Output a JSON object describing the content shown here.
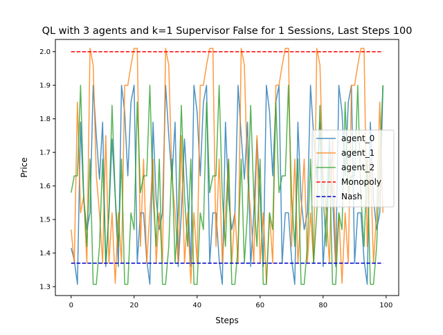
{
  "chart_data": {
    "type": "line",
    "title": "QL with 3 agents and k=1 Supervisor False for 1 Sessions, Last Steps 100",
    "xlabel": "Steps",
    "ylabel": "Price",
    "xlim": [
      -5,
      104
    ],
    "ylim": [
      1.2735,
      2.0365
    ],
    "xticks": [
      0,
      20,
      40,
      60,
      80,
      100
    ],
    "xtick_labels": [
      "0",
      "20",
      "40",
      "60",
      "80",
      "100"
    ],
    "yticks": [
      1.3,
      1.4,
      1.5,
      1.6,
      1.7,
      1.8,
      1.9,
      2.0
    ],
    "ytick_labels": [
      "1.3",
      "1.4",
      "1.5",
      "1.6",
      "1.7",
      "1.8",
      "1.9",
      "2.0"
    ],
    "grid": false,
    "legend_position": "center-right",
    "series": [
      {
        "name": "agent_0",
        "color": "#1f77b4",
        "style": "solid",
        "values": [
          1.415,
          1.38,
          1.307,
          1.79,
          1.56,
          1.47,
          1.52,
          1.9,
          1.75,
          1.62,
          1.79,
          1.36,
          1.52,
          1.74,
          1.57,
          1.36,
          1.9,
          1.82,
          1.63,
          1.85,
          1.9,
          1.37,
          1.52,
          1.52,
          1.38,
          1.307,
          1.79,
          1.56,
          1.47,
          1.52,
          1.9,
          1.75,
          1.62,
          1.79,
          1.36,
          1.52,
          1.74,
          1.57,
          1.36,
          1.9,
          1.82,
          1.63,
          1.85,
          1.9,
          1.37,
          1.52,
          1.52,
          1.38,
          1.307,
          1.79,
          1.56,
          1.47,
          1.52,
          1.9,
          1.75,
          1.62,
          1.79,
          1.36,
          1.52,
          1.74,
          1.57,
          1.36,
          1.9,
          1.82,
          1.63,
          1.85,
          1.9,
          1.37,
          1.52,
          1.52,
          1.38,
          1.307,
          1.79,
          1.56,
          1.47,
          1.52,
          1.9,
          1.75,
          1.62,
          1.79,
          1.36,
          1.52,
          1.74,
          1.57,
          1.36,
          1.9,
          1.82,
          1.63,
          1.85,
          1.9,
          1.37,
          1.52,
          1.52,
          1.38,
          1.307,
          1.79,
          1.56,
          1.47,
          1.52,
          1.9
        ]
      },
      {
        "name": "agent_1",
        "color": "#ff7f0e",
        "style": "solid",
        "values": [
          1.47,
          1.37,
          1.85,
          1.52,
          1.57,
          1.37,
          2.01,
          1.96,
          1.63,
          1.52,
          1.37,
          1.75,
          1.37,
          1.52,
          1.31,
          1.52,
          1.37,
          1.9,
          1.9,
          1.96,
          2.01,
          2.01,
          1.42,
          1.68,
          1.37,
          1.52,
          1.68,
          1.37,
          1.52,
          1.37,
          2.01,
          1.96,
          1.63,
          1.52,
          1.37,
          1.75,
          1.37,
          1.52,
          1.31,
          1.52,
          1.37,
          1.9,
          1.9,
          1.96,
          2.01,
          2.01,
          1.42,
          1.68,
          1.37,
          1.52,
          1.68,
          1.37,
          1.52,
          1.37,
          2.01,
          1.96,
          1.63,
          1.52,
          1.37,
          1.75,
          1.37,
          1.52,
          1.31,
          1.52,
          1.37,
          1.9,
          1.9,
          1.96,
          2.01,
          2.01,
          1.42,
          1.68,
          1.37,
          1.52,
          1.68,
          1.37,
          1.52,
          1.37,
          2.01,
          1.96,
          1.63,
          1.52,
          1.37,
          1.75,
          1.37,
          1.52,
          1.31,
          1.52,
          1.37,
          1.9,
          1.9,
          1.96,
          2.01,
          2.01,
          1.42,
          1.68,
          1.37,
          1.52,
          1.85,
          1.52
        ]
      },
      {
        "name": "agent_2",
        "color": "#2ca02c",
        "style": "solid",
        "values": [
          1.58,
          1.63,
          1.63,
          1.9,
          1.57,
          1.42,
          1.68,
          1.307,
          1.307,
          1.42,
          1.68,
          1.37,
          1.52,
          1.84,
          1.57,
          1.42,
          1.68,
          1.307,
          1.307,
          1.52,
          1.47,
          1.85,
          1.58,
          1.63,
          1.63,
          1.9,
          1.57,
          1.42,
          1.68,
          1.307,
          1.307,
          1.42,
          1.68,
          1.37,
          1.52,
          1.84,
          1.57,
          1.42,
          1.68,
          1.307,
          1.307,
          1.52,
          1.47,
          1.85,
          1.58,
          1.63,
          1.63,
          1.9,
          1.57,
          1.42,
          1.68,
          1.307,
          1.307,
          1.42,
          1.68,
          1.37,
          1.52,
          1.84,
          1.57,
          1.42,
          1.68,
          1.307,
          1.307,
          1.52,
          1.47,
          1.85,
          1.58,
          1.63,
          1.63,
          1.9,
          1.57,
          1.42,
          1.68,
          1.307,
          1.307,
          1.42,
          1.68,
          1.37,
          1.52,
          1.84,
          1.57,
          1.42,
          1.68,
          1.307,
          1.307,
          1.52,
          1.47,
          1.85,
          1.58,
          1.63,
          1.63,
          1.9,
          1.57,
          1.42,
          1.68,
          1.307,
          1.307,
          1.42,
          1.68,
          1.9
        ]
      },
      {
        "name": "Monopoly",
        "color": "#ff0000",
        "style": "dashed",
        "x": [
          0,
          99
        ],
        "values": [
          2.0,
          2.0
        ]
      },
      {
        "name": "Nash",
        "color": "#0000cc",
        "style": "dashed",
        "x": [
          0,
          99
        ],
        "values": [
          1.37,
          1.37
        ]
      }
    ]
  }
}
